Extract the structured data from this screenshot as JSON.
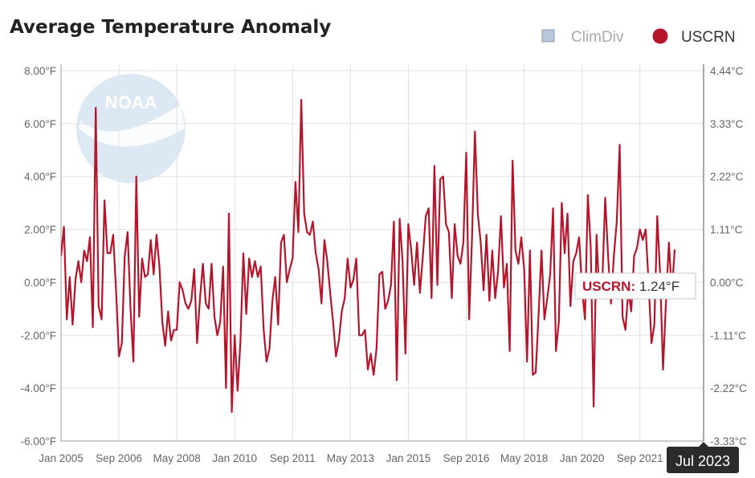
{
  "chart_data": {
    "type": "line",
    "title": "Average Temperature Anomaly",
    "legend": {
      "placement": "top-right",
      "items": [
        {
          "name": "ClimDiv",
          "color": "#b8c8d8",
          "marker": "square",
          "active": false
        },
        {
          "name": "USCRN",
          "color": "#b5152b",
          "marker": "circle",
          "active": true
        }
      ]
    },
    "y_left": {
      "ticks": [
        "8.00°F",
        "6.00°F",
        "4.00°F",
        "2.00°F",
        "0.00°F",
        "-2.00°F",
        "-4.00°F",
        "-6.00°F"
      ],
      "range": [
        -6,
        8
      ],
      "unit": "°F"
    },
    "y_right": {
      "ticks": [
        "4.44°C",
        "3.33°C",
        "2.22°C",
        "1.11°C",
        "0.00°C",
        "-1.11°C",
        "-2.22°C",
        "-3.33°C"
      ],
      "range": [
        -3.33,
        4.44
      ],
      "unit": "°C"
    },
    "x_ticks": [
      "Jan 2005",
      "Sep 2006",
      "May 2008",
      "Jan 2010",
      "Sep 2011",
      "May 2013",
      "Jan 2015",
      "Sep 2016",
      "May 2018",
      "Jan 2020",
      "Sep 2021"
    ],
    "x_range": [
      "2005-01",
      "2023-07"
    ],
    "grid": true,
    "watermark": "NOAA",
    "series": [
      {
        "name": "USCRN",
        "color": "#b5152b",
        "x_start": "2005-01",
        "frequency": "monthly",
        "values": [
          1.0,
          2.1,
          -1.4,
          0.2,
          -1.6,
          0.1,
          0.8,
          0.0,
          1.2,
          0.8,
          1.7,
          -1.7,
          6.6,
          -0.9,
          -1.4,
          3.1,
          1.1,
          1.1,
          1.8,
          -0.3,
          -2.8,
          -2.3,
          1.0,
          1.9,
          -1.0,
          -3.0,
          4.0,
          -1.3,
          0.9,
          0.2,
          0.3,
          1.6,
          0.3,
          1.8,
          0.6,
          -1.5,
          -2.4,
          -1.1,
          -2.2,
          -1.8,
          -1.8,
          0.0,
          -0.3,
          -0.8,
          -1.0,
          -0.7,
          0.5,
          -2.3,
          -0.6,
          0.7,
          -0.8,
          -1.0,
          0.7,
          -1.3,
          -2.0,
          -1.5,
          0.6,
          -4.0,
          2.6,
          -4.9,
          -2.0,
          -4.1,
          -2.2,
          1.1,
          -1.2,
          0.9,
          0.2,
          0.8,
          0.2,
          0.6,
          -1.8,
          -3.0,
          -2.5,
          -0.7,
          0.2,
          -1.6,
          1.5,
          1.8,
          0.0,
          0.5,
          0.9,
          3.8,
          1.9,
          6.9,
          2.6,
          1.9,
          1.8,
          2.3,
          1.1,
          0.5,
          -0.8,
          1.6,
          0.8,
          -0.4,
          -1.5,
          -2.8,
          -2.2,
          -1.1,
          -0.6,
          0.9,
          -0.2,
          0.1,
          0.9,
          -2.0,
          -2.0,
          -1.8,
          -3.3,
          -2.7,
          -3.5,
          -2.5,
          0.3,
          0.4,
          -1.0,
          -0.7,
          -0.1,
          2.3,
          -3.7,
          2.4,
          0.8,
          -2.7,
          2.2,
          1.2,
          -0.1,
          1.5,
          -0.4,
          1.0,
          2.5,
          2.8,
          -0.6,
          4.4,
          -0.1,
          3.9,
          4.0,
          2.2,
          1.9,
          -0.6,
          2.2,
          1.0,
          0.7,
          1.5,
          4.9,
          -1.4,
          1.7,
          5.7,
          2.6,
          1.5,
          -0.3,
          1.8,
          -0.7,
          1.2,
          -0.6,
          0.4,
          2.5,
          -0.2,
          0.7,
          -2.6,
          4.6,
          1.2,
          0.7,
          1.7,
          0.5,
          -3.0,
          1.2,
          -3.5,
          -3.4,
          -1.2,
          1.2,
          -1.4,
          -0.6,
          0.3,
          2.8,
          -2.6,
          -1.5,
          3.0,
          1.1,
          2.6,
          -0.9,
          0.8,
          1.1,
          1.7,
          -0.2,
          -1.4,
          3.3,
          1.3,
          -4.7,
          1.8,
          -0.6,
          0.0,
          3.2,
          1.0,
          -0.8,
          1.0,
          2.3,
          5.2,
          -1.3,
          -1.8,
          -0.3,
          -1.1,
          1.0,
          1.3,
          2.0,
          1.6,
          2.0,
          0.0,
          -2.3,
          -1.6,
          2.5,
          0.3,
          -3.3,
          -0.7,
          1.5,
          -0.4,
          1.24
        ]
      }
    ],
    "tooltip": {
      "label": "USCRN:",
      "value": "1.24°F"
    },
    "crosshair_label": "Jul 2023"
  }
}
